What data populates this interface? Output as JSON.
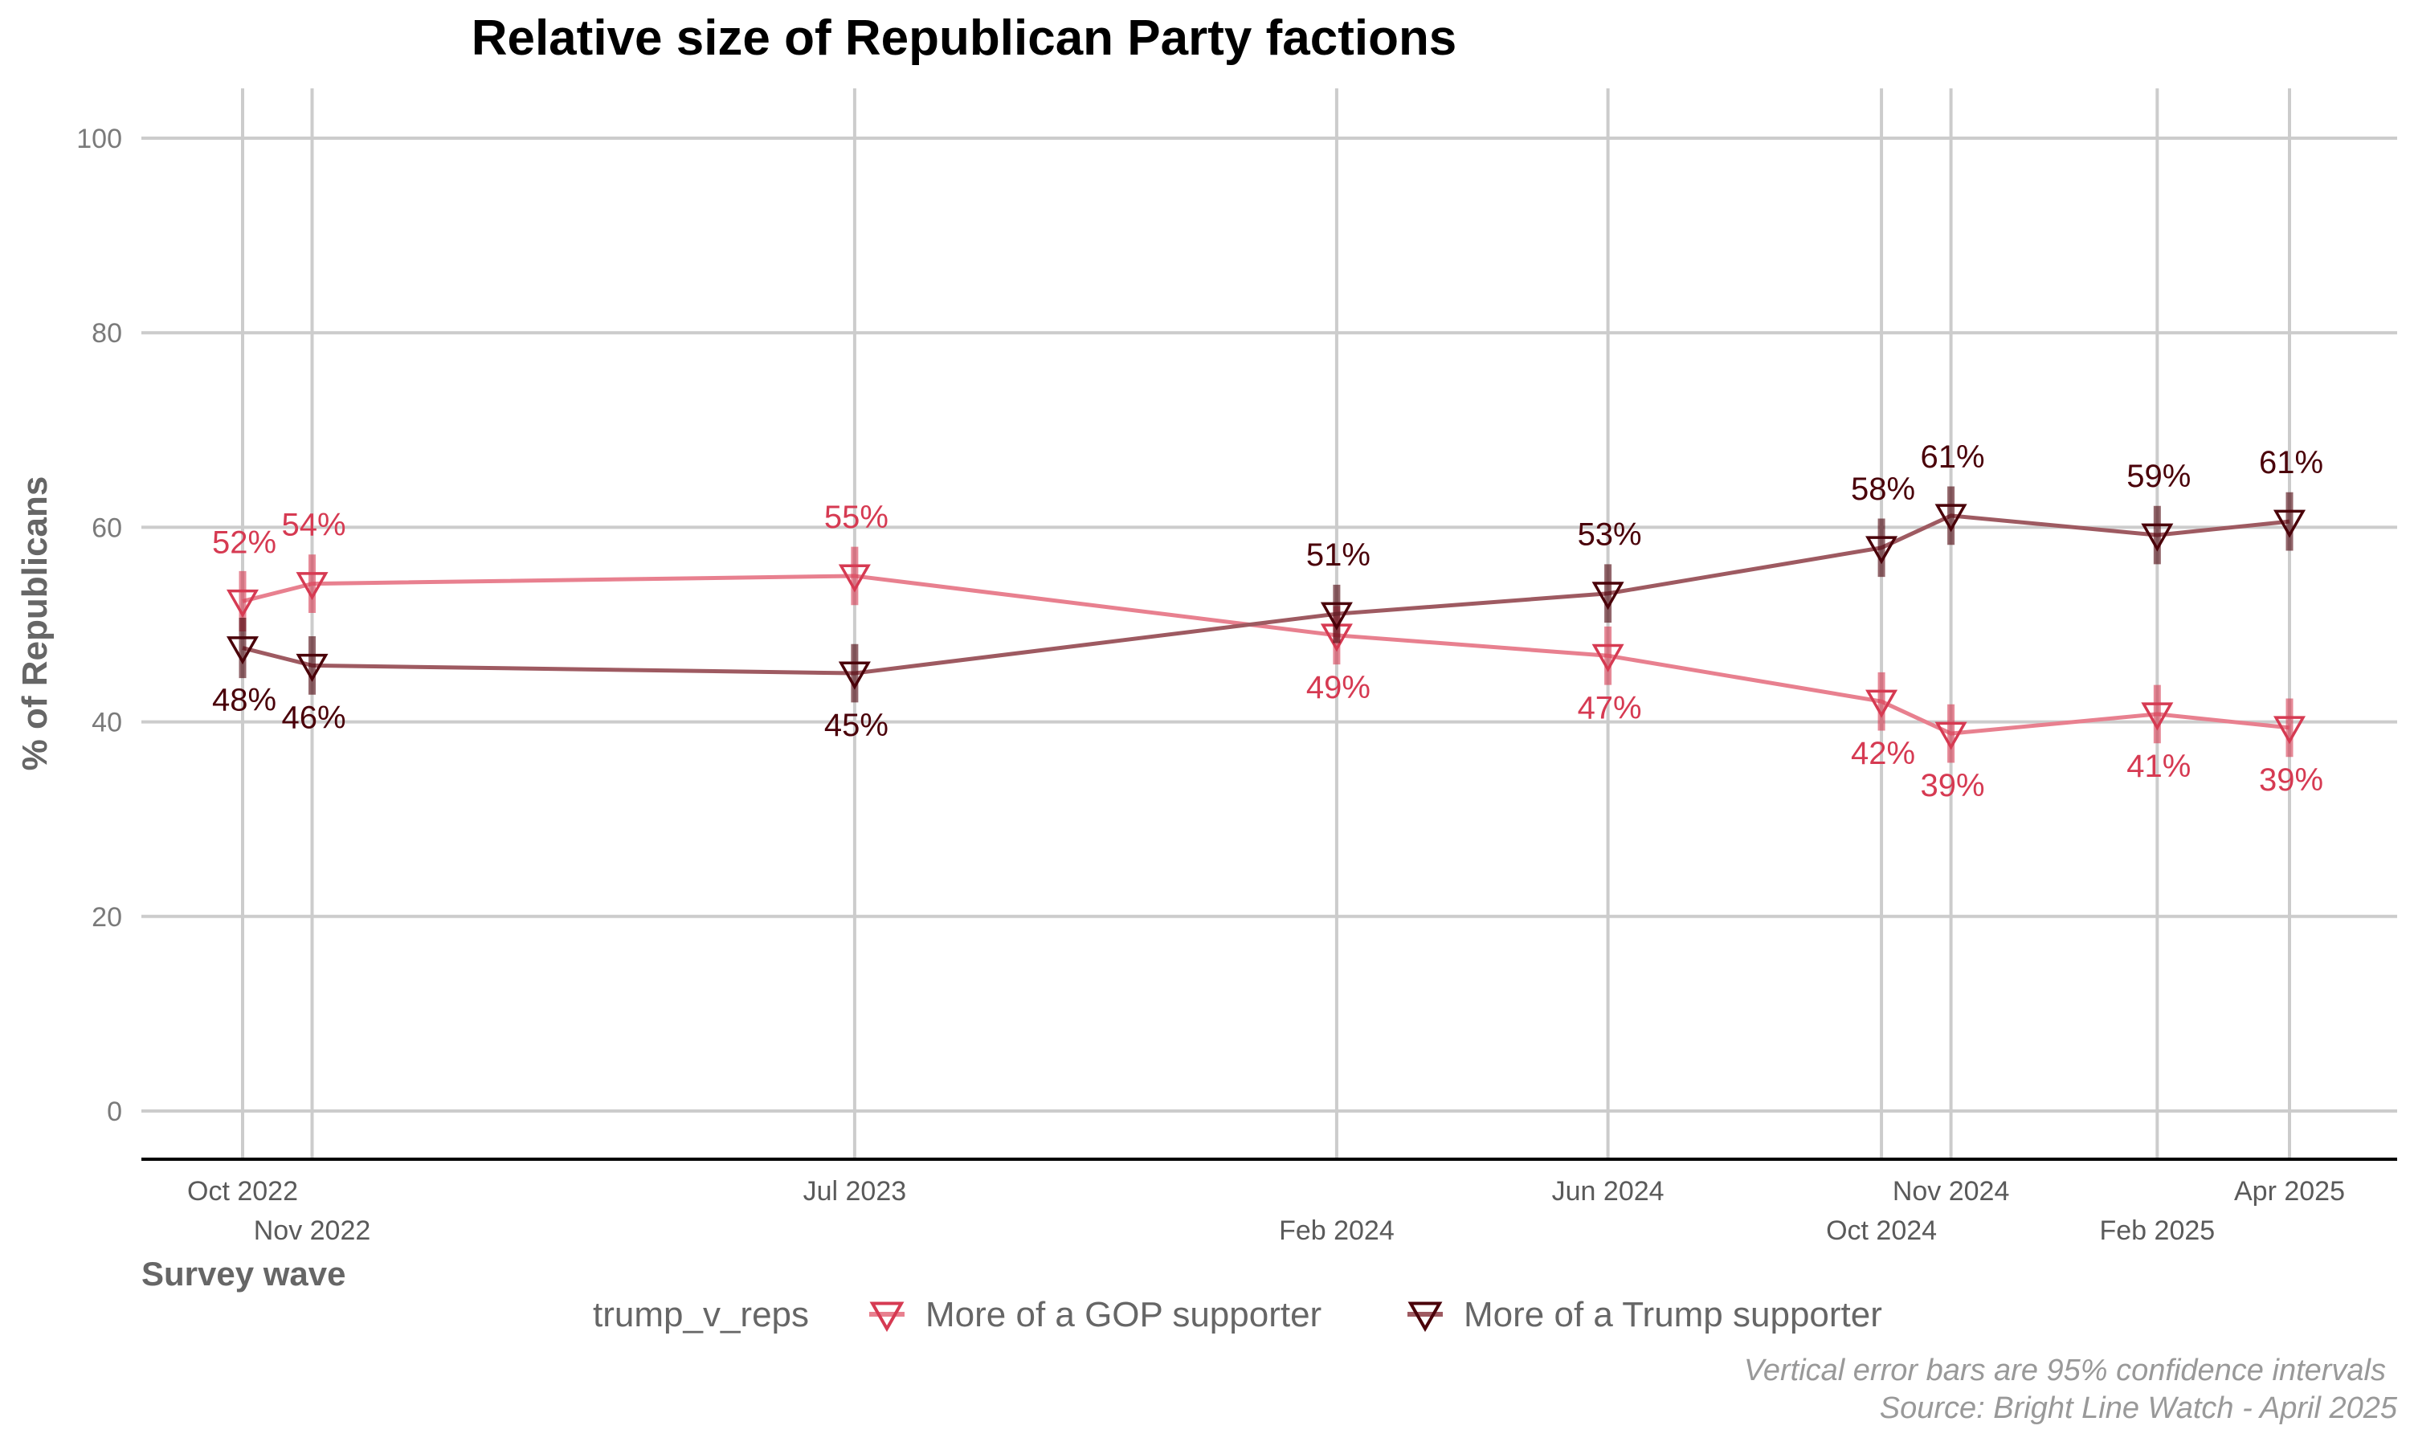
{
  "chart_data": {
    "type": "line",
    "title": "Relative size of Republican Party factions",
    "xlabel": "Survey wave",
    "ylabel": "% of Republicans",
    "ylim": [
      0,
      100
    ],
    "yticks": [
      "0",
      "20",
      "40",
      "60",
      "80",
      "100"
    ],
    "x": [
      "2022-10-01",
      "2022-11-01",
      "2023-07-01",
      "2024-02-01",
      "2024-06-01",
      "2024-10-01",
      "2024-11-01",
      "2025-02-01",
      "2025-04-01"
    ],
    "x_tick_labels": [
      "Oct 2022",
      "Nov 2022",
      "Jul 2023",
      "Feb 2024",
      "Jun 2024",
      "Oct 2024",
      "Nov 2024",
      "Feb 2025",
      "Apr 2025"
    ],
    "grid": true,
    "legend": {
      "title": "trump_v_reps",
      "placement": "bottom"
    },
    "series": [
      {
        "name": "More of a GOP supporter",
        "color": "#e8808f",
        "marker_color": "#d63a52",
        "label_color": "#d63a52",
        "values": [
          52.4,
          54.2,
          55.0,
          48.9,
          46.8,
          42.1,
          38.8,
          40.8,
          39.4
        ],
        "ci_low": [
          49.3,
          51.2,
          52.0,
          45.9,
          43.8,
          39.1,
          35.8,
          37.8,
          36.4
        ],
        "ci_high": [
          55.5,
          57.2,
          58.0,
          51.9,
          49.8,
          45.1,
          41.8,
          43.8,
          42.4
        ],
        "labels": [
          "52%",
          "54%",
          "55%",
          "49%",
          "47%",
          "42%",
          "39%",
          "41%",
          "39%"
        ],
        "label_pos": [
          "above",
          "above",
          "above",
          "below",
          "below",
          "below",
          "below",
          "below",
          "below"
        ]
      },
      {
        "name": "More of a Trump supporter",
        "color": "#9e5a61",
        "marker_color": "#4a0009",
        "label_color": "#4a0009",
        "values": [
          47.6,
          45.8,
          45.0,
          51.1,
          53.2,
          57.9,
          61.2,
          59.2,
          60.6
        ],
        "ci_low": [
          44.5,
          42.8,
          42.0,
          48.1,
          50.2,
          54.9,
          58.2,
          56.2,
          57.6
        ],
        "ci_high": [
          50.7,
          48.8,
          48.0,
          54.1,
          56.2,
          60.9,
          64.2,
          62.2,
          63.6
        ],
        "labels": [
          "48%",
          "46%",
          "45%",
          "51%",
          "53%",
          "58%",
          "61%",
          "59%",
          "61%"
        ],
        "label_pos": [
          "below",
          "below",
          "below",
          "above",
          "above",
          "above",
          "above",
          "above",
          "above"
        ]
      }
    ],
    "caption": [
      "Vertical error bars are 95% confidence intervals",
      "Source: Bright Line Watch - April 2025"
    ]
  }
}
